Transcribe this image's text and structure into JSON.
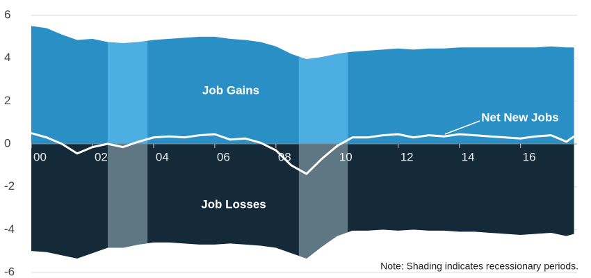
{
  "chart_data": {
    "type": "area",
    "x": [
      2000,
      2000.5,
      2001,
      2001.5,
      2002,
      2002.5,
      2003,
      2003.5,
      2004,
      2004.5,
      2005,
      2005.5,
      2006,
      2006.5,
      2007,
      2007.5,
      2008,
      2008.5,
      2009,
      2009.5,
      2010,
      2010.5,
      2011,
      2011.5,
      2012,
      2012.5,
      2013,
      2013.5,
      2014,
      2014.5,
      2015,
      2015.5,
      2016,
      2016.5,
      2017,
      2017.5,
      2017.75
    ],
    "series": [
      {
        "name": "Job Gains",
        "color": "#2a8fc4",
        "recession_color": "#4daee2",
        "values": [
          5.5,
          5.4,
          5.1,
          4.85,
          4.9,
          4.75,
          4.7,
          4.75,
          4.85,
          4.9,
          4.95,
          5.0,
          5.0,
          4.9,
          4.85,
          4.75,
          4.55,
          4.2,
          3.95,
          4.05,
          4.2,
          4.3,
          4.35,
          4.4,
          4.45,
          4.4,
          4.45,
          4.45,
          4.5,
          4.5,
          4.5,
          4.5,
          4.5,
          4.5,
          4.55,
          4.5,
          4.5
        ]
      },
      {
        "name": "Job Losses",
        "color": "#152a38",
        "recession_color": "#5f7683",
        "values": [
          -5.0,
          -5.05,
          -5.2,
          -5.35,
          -5.1,
          -4.85,
          -4.85,
          -4.7,
          -4.6,
          -4.6,
          -4.65,
          -4.7,
          -4.7,
          -4.65,
          -4.7,
          -4.75,
          -4.85,
          -5.1,
          -5.35,
          -4.8,
          -4.3,
          -4.05,
          -4.05,
          -4.0,
          -4.05,
          -4.0,
          -4.05,
          -4.05,
          -4.1,
          -4.1,
          -4.15,
          -4.2,
          -4.25,
          -4.2,
          -4.15,
          -4.3,
          -4.2
        ]
      },
      {
        "name": "Net New Jobs",
        "color": "#ffffff",
        "values": [
          0.5,
          0.3,
          0.0,
          -0.45,
          -0.15,
          0.0,
          -0.15,
          0.1,
          0.3,
          0.35,
          0.3,
          0.4,
          0.45,
          0.2,
          0.25,
          0.05,
          -0.3,
          -1.0,
          -1.4,
          -0.7,
          -0.1,
          0.3,
          0.3,
          0.4,
          0.45,
          0.3,
          0.4,
          0.35,
          0.45,
          0.4,
          0.35,
          0.3,
          0.25,
          0.35,
          0.4,
          0.1,
          0.35
        ]
      }
    ],
    "recessions": [
      [
        2002.5,
        2003.8
      ],
      [
        2008.75,
        2010.35
      ]
    ],
    "note": "Note: Shading indicates recessionary periods.",
    "xlim": [
      2000,
      2017.85
    ],
    "xticks": [
      {
        "value": 2000,
        "label": "00"
      },
      {
        "value": 2002,
        "label": "02"
      },
      {
        "value": 2004,
        "label": "04"
      },
      {
        "value": 2006,
        "label": "06"
      },
      {
        "value": 2008,
        "label": "08"
      },
      {
        "value": 2010,
        "label": "10"
      },
      {
        "value": 2012,
        "label": "12"
      },
      {
        "value": 2014,
        "label": "14"
      },
      {
        "value": 2016,
        "label": "16"
      }
    ],
    "ylim": [
      -6,
      6
    ],
    "yticks": [
      -6,
      -4,
      -2,
      0,
      2,
      4,
      6
    ],
    "grid": true
  }
}
